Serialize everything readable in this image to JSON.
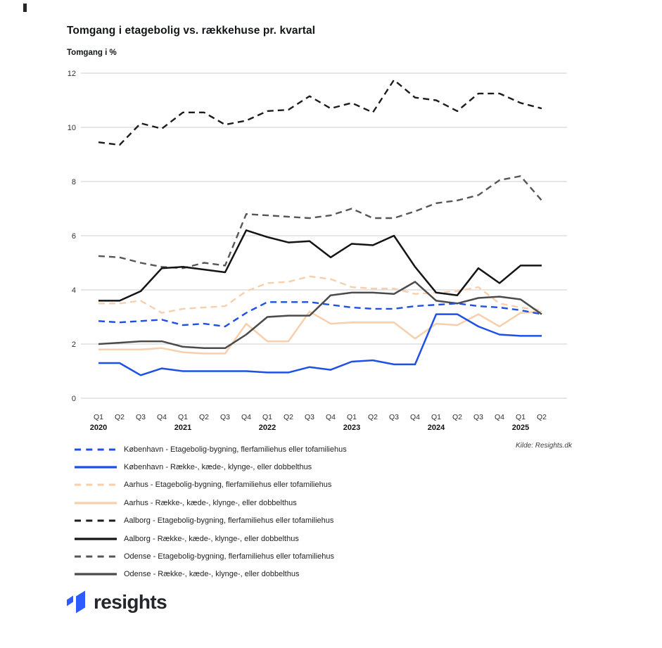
{
  "page": {
    "title": "Tomgang i etagebolig vs. rækkehuse pr. kvartal",
    "source": "Kilde: Resights.dk",
    "logo_text": "resights",
    "brand_blue": "#2E5BFF"
  },
  "chart_data": {
    "type": "line",
    "title": "Tomgang i etagebolig vs. rækkehuse pr. kvartal",
    "ylabel": "Tomgang i %",
    "xlabel": "",
    "ylim": [
      0,
      12
    ],
    "yticks": [
      0,
      2,
      4,
      6,
      8,
      10,
      12
    ],
    "grid": true,
    "legend_position": "bottom-left",
    "gridline_color": "#cdcdcd",
    "categories": [
      "Q1 2020",
      "Q2 2020",
      "Q3 2020",
      "Q4 2020",
      "Q1 2021",
      "Q2 2021",
      "Q3 2021",
      "Q4 2021",
      "Q1 2022",
      "Q2 2022",
      "Q3 2022",
      "Q4 2022",
      "Q1 2023",
      "Q2 2023",
      "Q3 2023",
      "Q4 2023",
      "Q1 2024",
      "Q2 2024",
      "Q3 2024",
      "Q4 2024",
      "Q1 2025",
      "Q2 2025"
    ],
    "series": [
      {
        "name": "København - Etagebolig-bygning, flerfamiliehus eller tofamiliehus",
        "color": "#1d50e6",
        "dash": true,
        "values": [
          2.85,
          2.8,
          2.85,
          2.9,
          2.7,
          2.75,
          2.65,
          3.15,
          3.55,
          3.55,
          3.55,
          3.45,
          3.35,
          3.3,
          3.3,
          3.4,
          3.45,
          3.5,
          3.4,
          3.35,
          3.25,
          3.1
        ]
      },
      {
        "name": "København - Række-, kæde-, klynge-, eller dobbelthus",
        "color": "#1d50e6",
        "dash": false,
        "values": [
          1.3,
          1.3,
          0.85,
          1.1,
          1.0,
          1.0,
          1.0,
          1.0,
          0.95,
          0.95,
          1.15,
          1.05,
          1.35,
          1.4,
          1.25,
          1.25,
          3.1,
          3.1,
          2.65,
          2.35,
          2.3,
          2.3
        ]
      },
      {
        "name": "Aarhus - Etagebolig-bygning, flerfamiliehus eller tofamiliehus",
        "color": "#f8cfac",
        "dash": true,
        "values": [
          3.5,
          3.5,
          3.6,
          3.15,
          3.3,
          3.35,
          3.4,
          3.95,
          4.25,
          4.3,
          4.5,
          4.4,
          4.1,
          4.05,
          4.05,
          3.85,
          3.9,
          3.95,
          4.1,
          3.5,
          3.35,
          3.25
        ]
      },
      {
        "name": "Aarhus - Række-, kæde-, klynge-, eller dobbelthus",
        "color": "#f8cfac",
        "dash": false,
        "values": [
          1.8,
          1.8,
          1.8,
          1.85,
          1.7,
          1.65,
          1.65,
          2.75,
          2.1,
          2.1,
          3.2,
          2.75,
          2.8,
          2.8,
          2.8,
          2.2,
          2.75,
          2.7,
          3.1,
          2.65,
          3.15,
          3.2
        ]
      },
      {
        "name": "Aalborg - Etagebolig-bygning, flerfamiliehus eller tofamiliehus",
        "color": "#1c1c1c",
        "dash": true,
        "values": [
          9.45,
          9.35,
          10.15,
          9.95,
          10.55,
          10.55,
          10.1,
          10.25,
          10.6,
          10.65,
          11.15,
          10.7,
          10.9,
          10.55,
          11.75,
          11.1,
          11.0,
          10.6,
          11.25,
          11.25,
          10.9,
          10.7
        ]
      },
      {
        "name": "Aalborg - Række-, kæde-, klynge-, eller dobbelthus",
        "color": "#141414",
        "dash": false,
        "values": [
          3.6,
          3.6,
          3.95,
          4.8,
          4.85,
          4.75,
          4.65,
          6.2,
          5.95,
          5.75,
          5.8,
          5.2,
          5.7,
          5.65,
          6.0,
          4.85,
          3.9,
          3.8,
          4.8,
          4.25,
          4.9,
          4.9
        ]
      },
      {
        "name": "Odense - Etagebolig-bygning, flerfamiliehus eller tofamiliehus",
        "color": "#565656",
        "dash": true,
        "values": [
          5.25,
          5.2,
          5.0,
          4.85,
          4.8,
          5.0,
          4.9,
          6.8,
          6.75,
          6.7,
          6.65,
          6.75,
          7.0,
          6.65,
          6.65,
          6.9,
          7.2,
          7.3,
          7.5,
          8.05,
          8.2,
          7.3
        ]
      },
      {
        "name": "Odense - Række-, kæde-, klynge-, eller dobbelthus",
        "color": "#4b4b4b",
        "dash": false,
        "values": [
          2.0,
          2.05,
          2.1,
          2.1,
          1.9,
          1.85,
          1.85,
          2.35,
          3.0,
          3.05,
          3.05,
          3.8,
          3.9,
          3.9,
          3.85,
          4.3,
          3.6,
          3.5,
          3.7,
          3.75,
          3.65,
          3.1
        ]
      }
    ]
  }
}
